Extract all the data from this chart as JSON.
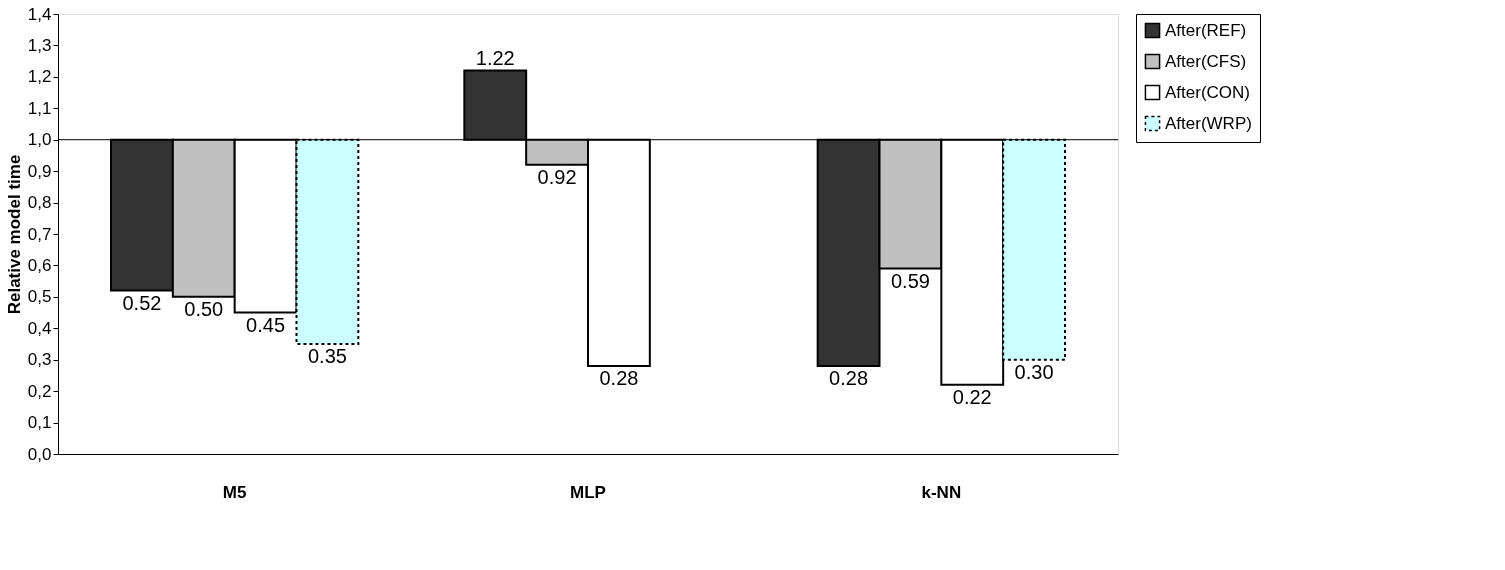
{
  "chart_data": {
    "type": "bar",
    "ylabel": "Relative model time",
    "categories": [
      "M5",
      "MLP",
      "k-NN"
    ],
    "series": [
      {
        "name": "After(REF)",
        "color": "#333333",
        "base": [
          1.0,
          1.0,
          1.0
        ],
        "values": [
          -0.48,
          0.22,
          -0.72
        ],
        "value_labels": [
          "0.52",
          "1.22",
          "0.28"
        ]
      },
      {
        "name": "After(CFS)",
        "color": "#c0c0c0",
        "base": [
          1.0,
          1.0,
          1.0
        ],
        "values": [
          -0.5,
          -0.08,
          -0.41
        ],
        "value_labels": [
          "0.50",
          "0.92",
          "0.59"
        ]
      },
      {
        "name": "After(CON)",
        "color": "#ffffff",
        "base": [
          1.0,
          1.0,
          1.0
        ],
        "values": [
          -0.55,
          -0.72,
          -0.78
        ],
        "value_labels": [
          "0.45",
          "0.28",
          "0.22"
        ]
      },
      {
        "name": "After(WRP)",
        "color": "#ccffff",
        "line_style": "dotted",
        "base": [
          1.0,
          null,
          1.0
        ],
        "values": [
          -0.65,
          null,
          -0.7
        ],
        "value_labels": [
          "0.35",
          null,
          "0.30"
        ]
      }
    ],
    "ylim": [
      0,
      1.4
    ],
    "yticks": [
      {
        "value": 0,
        "label": "0,0"
      },
      {
        "value": 0.1,
        "label": "0,1"
      },
      {
        "value": 0.2,
        "label": "0,2"
      },
      {
        "value": 0.3,
        "label": "0,3"
      },
      {
        "value": 0.4,
        "label": "0,4"
      },
      {
        "value": 0.5,
        "label": "0,5"
      },
      {
        "value": 0.6,
        "label": "0,6"
      },
      {
        "value": 0.7,
        "label": "0,7"
      },
      {
        "value": 0.8,
        "label": "0,8"
      },
      {
        "value": 0.9,
        "label": "0,9"
      },
      {
        "value": 1.0,
        "label": "1,0"
      },
      {
        "value": 1.1,
        "label": "1,1"
      },
      {
        "value": 1.2,
        "label": "1,2"
      },
      {
        "value": 1.3,
        "label": "1,3"
      },
      {
        "value": 1.4,
        "label": "1,4"
      }
    ],
    "ref_lines": [
      {
        "axis": "y",
        "value": 1.0,
        "label": null
      }
    ],
    "grid": false,
    "legend": "right"
  }
}
